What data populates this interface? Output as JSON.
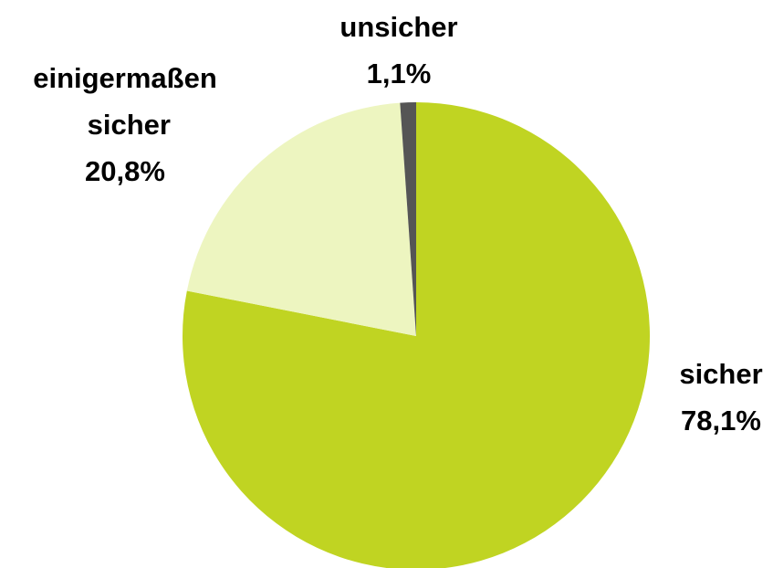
{
  "chart_data": {
    "type": "pie",
    "categories": [
      "sicher",
      "einigermaßen sicher",
      "unsicher"
    ],
    "values": [
      78.1,
      20.8,
      1.1
    ],
    "value_labels": [
      "78,1%",
      "20,8%",
      "1,1%"
    ],
    "colors": [
      "#c0d422",
      "#edf5c0",
      "#555555"
    ]
  }
}
